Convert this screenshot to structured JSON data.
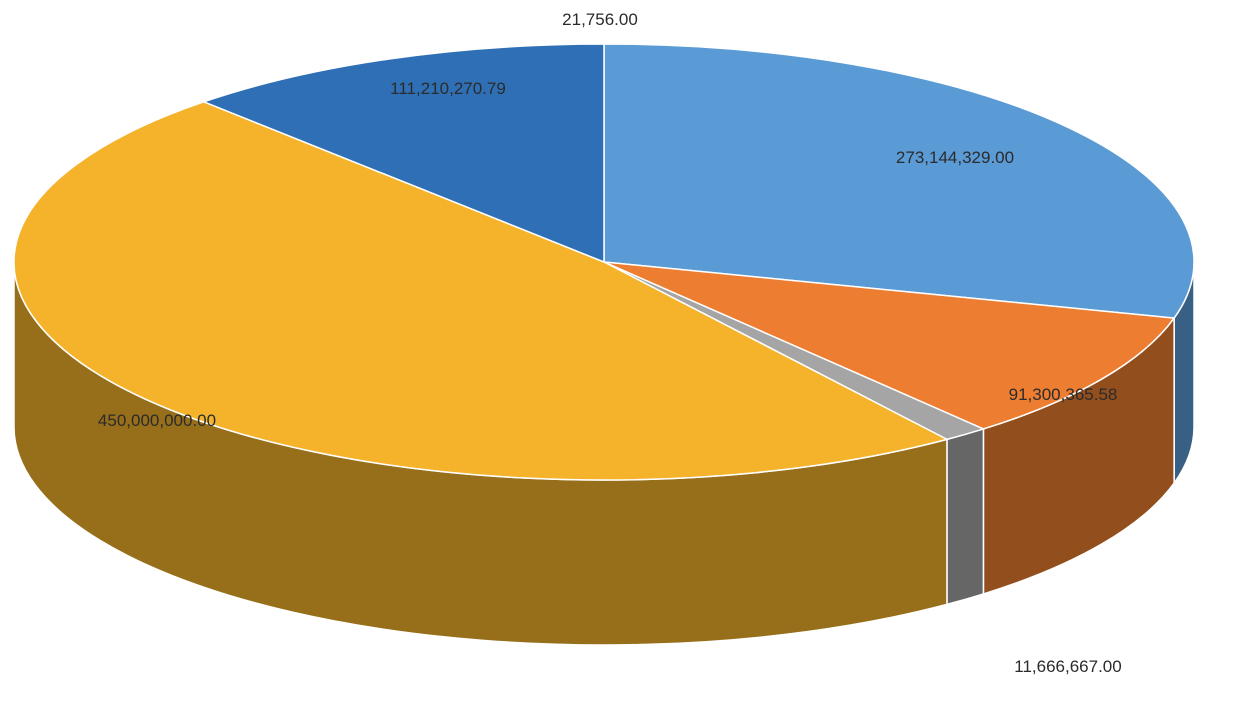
{
  "chart_data": {
    "type": "pie",
    "style": "3d",
    "slices": [
      {
        "value": 21756.0,
        "label": "21,756.00",
        "color": "#2f6fb5"
      },
      {
        "value": 273144329.0,
        "label": "273,144,329.00",
        "color": "#5b9bd5"
      },
      {
        "value": 91300365.58,
        "label": "91,300,365.58",
        "color": "#ed7d31"
      },
      {
        "value": 11666667.0,
        "label": "11,666,667.00",
        "color": "#a5a5a5"
      },
      {
        "value": 450000000.0,
        "label": "450,000,000.00",
        "color": "#f4b32b"
      },
      {
        "value": 111210270.79,
        "label": "111,210,270.79",
        "color": "#2f6fb5"
      }
    ],
    "legend": "none"
  }
}
